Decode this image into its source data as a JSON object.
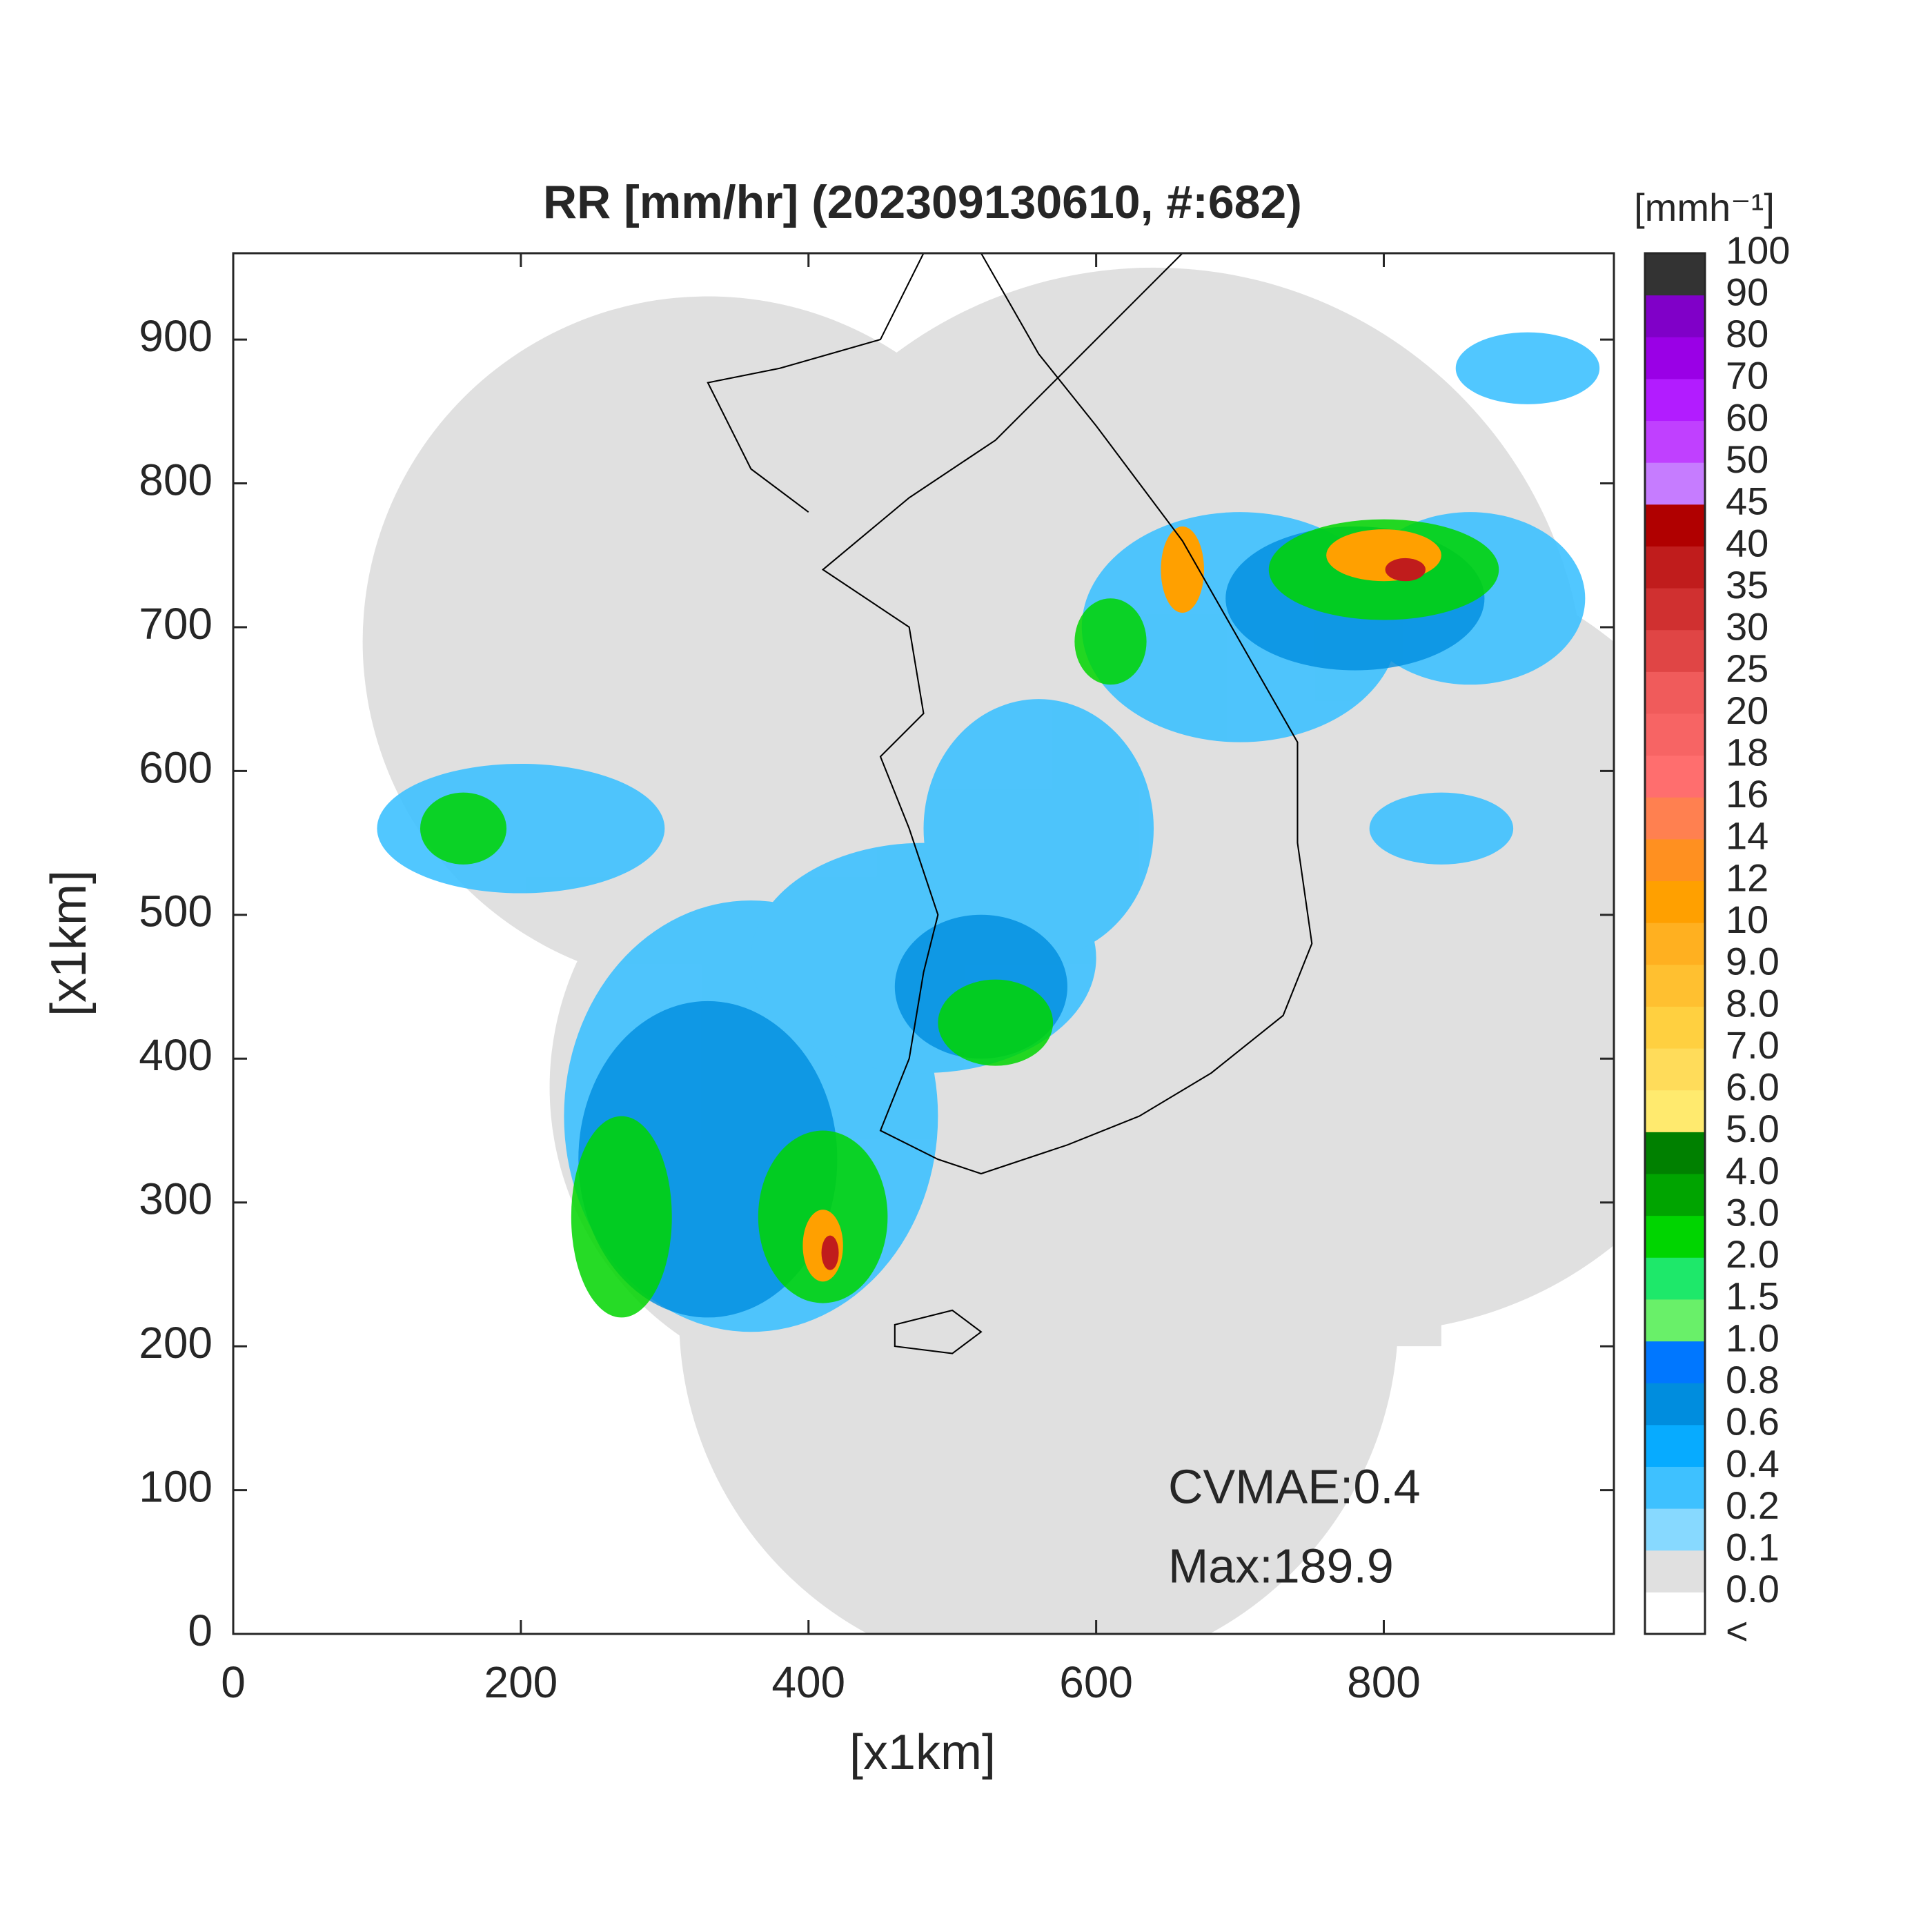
{
  "chart_data": {
    "type": "radar-map",
    "title": "RR [mm/hr] (202309130610, #:682)",
    "x_label": "[x1km]",
    "y_label": "[x1km]",
    "xlim": [
      0,
      960
    ],
    "ylim": [
      0,
      960
    ],
    "xticks": [
      0,
      200,
      400,
      600,
      800
    ],
    "yticks": [
      0,
      100,
      200,
      300,
      400,
      500,
      600,
      700,
      800,
      900
    ],
    "annotations": [
      "CVMAE:0.4",
      "Max:189.9"
    ],
    "colorbar": {
      "unit": "[mmh⁻¹]",
      "labels": [
        "<",
        "0.0",
        "0.1",
        "0.2",
        "0.4",
        "0.6",
        "0.8",
        "1.0",
        "1.5",
        "2.0",
        "3.0",
        "4.0",
        "5.0",
        "6.0",
        "7.0",
        "8.0",
        "9.0",
        "10",
        "12",
        "14",
        "16",
        "18",
        "20",
        "25",
        "30",
        "35",
        "40",
        "45",
        "50",
        "60",
        "70",
        "80",
        "90",
        "100"
      ],
      "colors": [
        "#ffffff",
        "#e0e0e0",
        "#87d9ff",
        "#3ec1ff",
        "#07abff",
        "#008dde",
        "#0077ff",
        "#69f069",
        "#1ee86a",
        "#00d500",
        "#00a400",
        "#008000",
        "#ffea6e",
        "#ffdc5a",
        "#ffd040",
        "#ffc030",
        "#ffb020",
        "#ffa000",
        "#ff9020",
        "#ff8050",
        "#ff6e6e",
        "#f76464",
        "#f05b5b",
        "#e04545",
        "#d03030",
        "#c01c1c",
        "#b00000",
        "#c67cff",
        "#c040ff",
        "#b21cff",
        "#9a00e6",
        "#8000c8",
        "#333333"
      ]
    }
  }
}
